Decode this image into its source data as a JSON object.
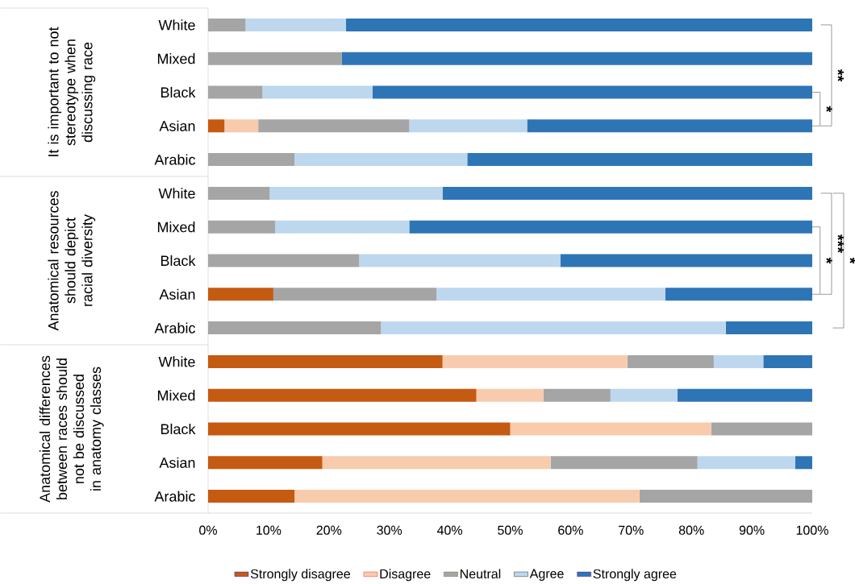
{
  "chart_data": {
    "type": "bar",
    "orientation": "horizontal",
    "stacked": true,
    "categories": [
      "White",
      "Mixed",
      "Black",
      "Asian",
      "Arabic",
      "White",
      "Mixed",
      "Black",
      "Asian",
      "Arabic",
      "White",
      "Mixed",
      "Black",
      "Asian",
      "Arabic"
    ],
    "series": [
      {
        "name": "Strongly disagree",
        "color": "#c55a11",
        "values": [
          0,
          0,
          0,
          2.7,
          0,
          0,
          0,
          0,
          10.8,
          0,
          38.8,
          44.4,
          50.0,
          18.9,
          14.3
        ]
      },
      {
        "name": "Disagree",
        "color": "#f8cbad",
        "values": [
          0,
          0,
          0,
          5.6,
          0,
          0,
          0,
          0,
          0,
          0,
          30.6,
          11.1,
          33.3,
          37.8,
          57.1
        ]
      },
      {
        "name": "Neutral",
        "color": "#a5a5a5",
        "values": [
          6.2,
          22.1,
          9.0,
          25.0,
          14.3,
          10.2,
          11.1,
          25.0,
          27.0,
          28.6,
          14.3,
          11.1,
          16.7,
          24.3,
          28.6
        ]
      },
      {
        "name": "Agree",
        "color": "#bdd7ee",
        "values": [
          16.6,
          0,
          18.2,
          19.5,
          28.6,
          28.6,
          22.2,
          33.3,
          37.9,
          57.1,
          8.2,
          11.1,
          0,
          16.2,
          0
        ]
      },
      {
        "name": "Strongly agree",
        "color": "#2e75b6",
        "values": [
          77.2,
          77.9,
          72.8,
          47.2,
          57.1,
          61.2,
          66.7,
          41.7,
          24.3,
          14.3,
          8.1,
          22.3,
          0,
          2.8,
          0
        ]
      }
    ],
    "xlim": [
      0,
      100
    ],
    "xticks": [
      {
        "value": 0,
        "label": "0%"
      },
      {
        "value": 10,
        "label": "10%"
      },
      {
        "value": 20,
        "label": "20%"
      },
      {
        "value": 30,
        "label": "30%"
      },
      {
        "value": 40,
        "label": "40%"
      },
      {
        "value": 50,
        "label": "50%"
      },
      {
        "value": 60,
        "label": "60%"
      },
      {
        "value": 70,
        "label": "70%"
      },
      {
        "value": 80,
        "label": "80%"
      },
      {
        "value": 90,
        "label": "90%"
      },
      {
        "value": 100,
        "label": "100%"
      }
    ],
    "annotations": [
      "It is important to not stereotype when discussing race",
      "Anatomical resources should depict racial diversity",
      "Anatomical differences between races should not be discussed in anatomy classes",
      "**",
      "*",
      "*",
      "***",
      "*"
    ],
    "legend": "bottom",
    "grid": false
  }
}
